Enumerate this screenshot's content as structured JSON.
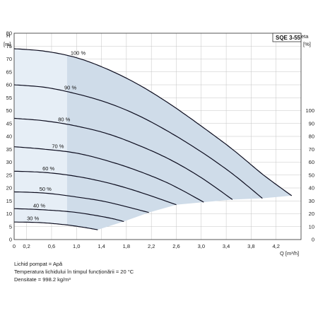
{
  "chart_data": {
    "type": "line",
    "model": "SQE 3-55",
    "y_left_label_top": "H",
    "y_left_label_unit": "[m]",
    "y_right_label_top": "eta",
    "y_right_label_unit": "[%]",
    "x_axis_label": "Q [m³/h]",
    "xlim": [
      0,
      4.6
    ],
    "ylim": [
      0,
      80
    ],
    "x_ticks": [
      "0",
      "0,2",
      "0,6",
      "1,0",
      "1,4",
      "1,8",
      "2,2",
      "2,6",
      "3,0",
      "3,4",
      "3,8",
      "4,2"
    ],
    "x_tick_values": [
      0,
      0.2,
      0.6,
      1.0,
      1.4,
      1.8,
      2.2,
      2.6,
      3.0,
      3.4,
      3.8,
      4.2
    ],
    "y_ticks": [
      0,
      5,
      10,
      15,
      20,
      25,
      30,
      35,
      40,
      45,
      50,
      55,
      60,
      65,
      70,
      75,
      80
    ],
    "y_right_ticks": [
      0,
      10,
      20,
      30,
      40,
      50,
      60,
      70,
      80,
      90,
      100
    ],
    "grid": true,
    "series": [
      {
        "name": "100 %",
        "x": [
          0,
          0.5,
          1.0,
          1.5,
          2.0,
          2.5,
          3.0,
          3.5,
          4.0,
          4.45
        ],
        "y": [
          74,
          73,
          70.5,
          66,
          60,
          52.5,
          44,
          35,
          25,
          17
        ]
      },
      {
        "name": "90 %",
        "x": [
          0,
          0.5,
          1.0,
          1.5,
          2.0,
          2.5,
          3.0,
          3.5,
          3.98
        ],
        "y": [
          60,
          59,
          56.5,
          53,
          48,
          41.5,
          34,
          25.5,
          16
        ]
      },
      {
        "name": "80 %",
        "x": [
          0,
          0.5,
          1.0,
          1.5,
          2.0,
          2.5,
          3.0,
          3.5
        ],
        "y": [
          47,
          46,
          44,
          41,
          36.5,
          31,
          24,
          15.5
        ]
      },
      {
        "name": "70 %",
        "x": [
          0,
          0.5,
          1.0,
          1.5,
          2.0,
          2.5,
          3.04
        ],
        "y": [
          36,
          35,
          33.5,
          30.5,
          26.5,
          21.5,
          14.5
        ]
      },
      {
        "name": "60 %",
        "x": [
          0,
          0.5,
          1.0,
          1.5,
          2.0,
          2.6
        ],
        "y": [
          26.5,
          26,
          24.5,
          22,
          18.5,
          13.5
        ]
      },
      {
        "name": "50 %",
        "x": [
          0,
          0.5,
          1.0,
          1.5,
          2.16
        ],
        "y": [
          18.5,
          18,
          16.5,
          14.5,
          10.5
        ]
      },
      {
        "name": "40 %",
        "x": [
          0,
          0.5,
          1.0,
          1.5,
          1.76
        ],
        "y": [
          12,
          11.5,
          10.5,
          8.5,
          7
        ]
      },
      {
        "name": "30 %",
        "x": [
          0,
          0.4,
          0.8,
          1.1,
          1.34
        ],
        "y": [
          6.8,
          6.6,
          5.8,
          4.8,
          3.8
        ]
      }
    ],
    "label_positions_q": [
      0.95,
      0.85,
      0.75,
      0.65,
      0.5,
      0.45,
      0.35,
      0.25
    ],
    "colors": {
      "envelope_fill": "#cfdce9",
      "envelope_highlight": "#e6eef6",
      "curve": "#0c0c1e",
      "grid": "#c4c4c4",
      "frame": "#333333"
    }
  },
  "notes": {
    "line1": "Lichid pompat = Apă",
    "line2": "Temperatura lichidului în timpul funcționării = 20 °C",
    "line3": "Densitate = 998.2 kg/m³"
  }
}
